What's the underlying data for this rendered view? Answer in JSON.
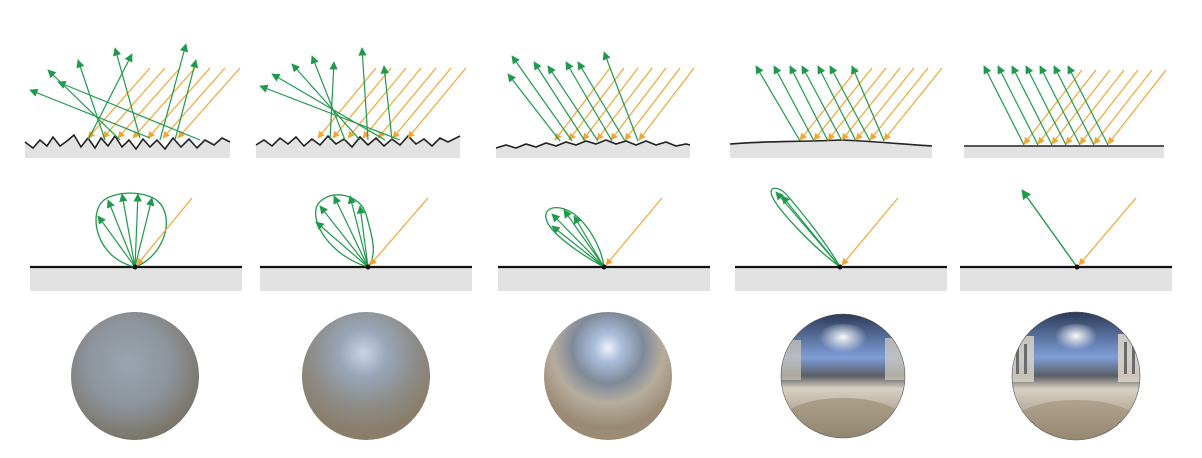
{
  "figure": {
    "columns": [
      {
        "roughness": 1.0
      },
      {
        "roughness": 0.8
      },
      {
        "roughness": 0.55
      },
      {
        "roughness": 0.25
      },
      {
        "roughness": 0.0
      }
    ]
  },
  "colors": {
    "incident_ray": "#f0a637",
    "reflected_ray": "#1f9a4c",
    "surface_line": "#222222",
    "surface_fill": "#e2e2e2"
  }
}
